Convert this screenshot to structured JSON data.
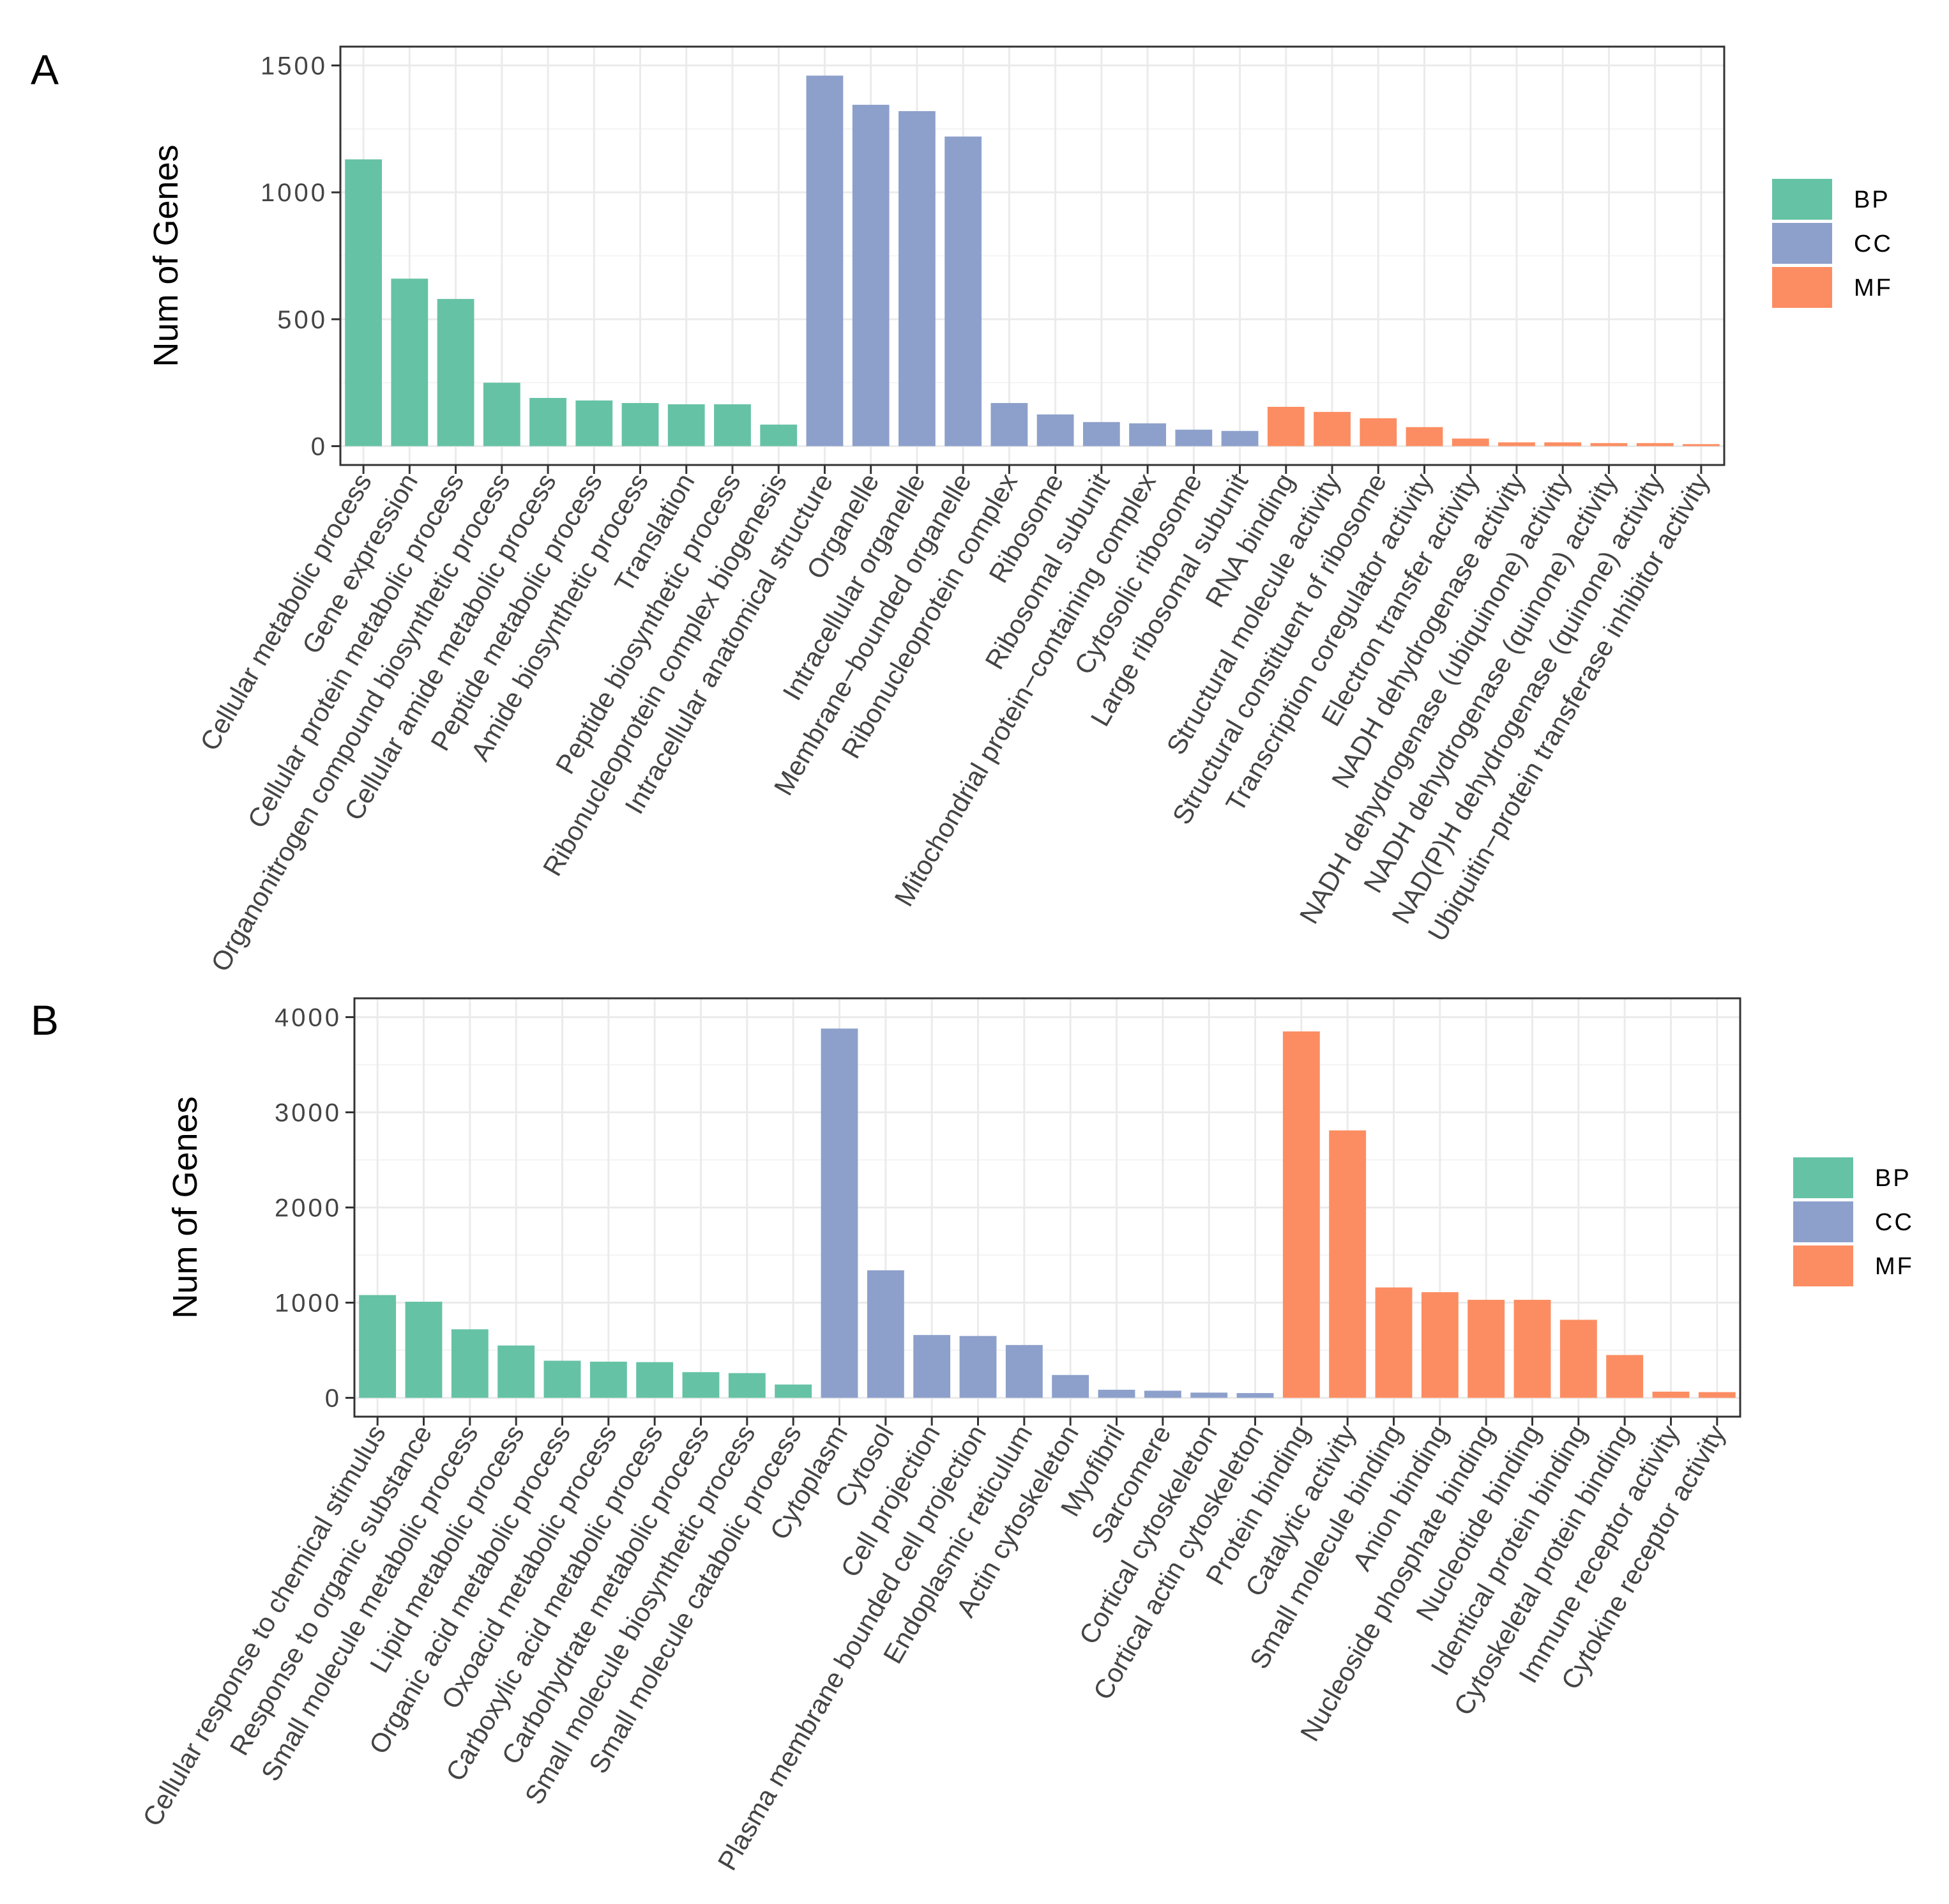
{
  "legend": {
    "entries": [
      {
        "name": "BP",
        "color": "#66c2a5"
      },
      {
        "name": "CC",
        "color": "#8da0cb"
      },
      {
        "name": "MF",
        "color": "#fc8d62"
      }
    ]
  },
  "chart_data": [
    {
      "panel": "A",
      "type": "bar",
      "title": "",
      "xlabel": "",
      "ylabel": "Num of Genes",
      "ylim": [
        0,
        1500
      ],
      "yticks": [
        0,
        500,
        1000,
        1500
      ],
      "yticklabels": [
        "0",
        "500",
        "1000",
        "1500"
      ],
      "grid": true,
      "legend_position": "right",
      "categories": [
        "Cellular metabolic process",
        "Gene expression",
        "Cellular protein metabolic process",
        "Organonitrogen compound biosynthetic process",
        "Cellular amide metabolic process",
        "Peptide metabolic process",
        "Amide biosynthetic process",
        "Translation",
        "Peptide biosynthetic process",
        "Ribonucleoprotein complex biogenesis",
        "Intracellular anatomical structure",
        "Organelle",
        "Intracellular organelle",
        "Membrane−bounded organelle",
        "Ribonucleoprotein complex",
        "Ribosome",
        "Ribosomal subunit",
        "Mitochondrial protein−containing complex",
        "Cytosolic ribosome",
        "Large ribosomal subunit",
        "RNA binding",
        "Structural molecule activity",
        "Structural constituent of ribosome",
        "Transcription coregulator activity",
        "Electron transfer activity",
        "NADH dehydrogenase activity",
        "NADH dehydrogenase (ubiquinone) activity",
        "NADH dehydrogenase (quinone) activity",
        "NAD(P)H dehydrogenase (quinone) activity",
        "Ubiquitin−protein transferase inhibitor activity"
      ],
      "values": [
        1130,
        660,
        580,
        250,
        190,
        180,
        170,
        165,
        165,
        85,
        1460,
        1345,
        1320,
        1220,
        170,
        125,
        95,
        90,
        65,
        60,
        155,
        135,
        110,
        75,
        30,
        15,
        15,
        12,
        12,
        8
      ],
      "groups": [
        "BP",
        "BP",
        "BP",
        "BP",
        "BP",
        "BP",
        "BP",
        "BP",
        "BP",
        "BP",
        "CC",
        "CC",
        "CC",
        "CC",
        "CC",
        "CC",
        "CC",
        "CC",
        "CC",
        "CC",
        "MF",
        "MF",
        "MF",
        "MF",
        "MF",
        "MF",
        "MF",
        "MF",
        "MF",
        "MF"
      ]
    },
    {
      "panel": "B",
      "type": "bar",
      "title": "",
      "xlabel": "",
      "ylabel": "Num of Genes",
      "ylim": [
        0,
        4000
      ],
      "yticks": [
        0,
        1000,
        2000,
        3000,
        4000
      ],
      "yticklabels": [
        "0",
        "1000",
        "2000",
        "3000",
        "4000"
      ],
      "grid": true,
      "legend_position": "right",
      "categories": [
        "Cellular response to chemical stimulus",
        "Response to organic substance",
        "Small molecule metabolic process",
        "Lipid metabolic process",
        "Organic acid metabolic process",
        "Oxoacid metabolic process",
        "Carboxylic acid metabolic process",
        "Carbohydrate metabolic process",
        "Small molecule biosynthetic process",
        "Small molecule catabolic process",
        "Cytoplasm",
        "Cytosol",
        "Cell projection",
        "Plasma membrane bounded cell projection",
        "Endoplasmic reticulum",
        "Actin cytoskeleton",
        "Myofibril",
        "Sarcomere",
        "Cortical cytoskeleton",
        "Cortical actin cytoskeleton",
        "Protein binding",
        "Catalytic activity",
        "Small molecule binding",
        "Anion binding",
        "Nucleoside phosphate binding",
        "Nucleotide binding",
        "Identical protein binding",
        "Cytoskeletal protein binding",
        "Immune receptor activity",
        "Cytokine receptor activity"
      ],
      "values": [
        1080,
        1010,
        720,
        550,
        390,
        380,
        375,
        270,
        260,
        140,
        3880,
        1340,
        660,
        650,
        555,
        240,
        85,
        75,
        55,
        50,
        3850,
        2810,
        1160,
        1110,
        1030,
        1030,
        820,
        450,
        65,
        60
      ],
      "groups": [
        "BP",
        "BP",
        "BP",
        "BP",
        "BP",
        "BP",
        "BP",
        "BP",
        "BP",
        "BP",
        "CC",
        "CC",
        "CC",
        "CC",
        "CC",
        "CC",
        "CC",
        "CC",
        "CC",
        "CC",
        "MF",
        "MF",
        "MF",
        "MF",
        "MF",
        "MF",
        "MF",
        "MF",
        "MF",
        "MF"
      ]
    }
  ]
}
